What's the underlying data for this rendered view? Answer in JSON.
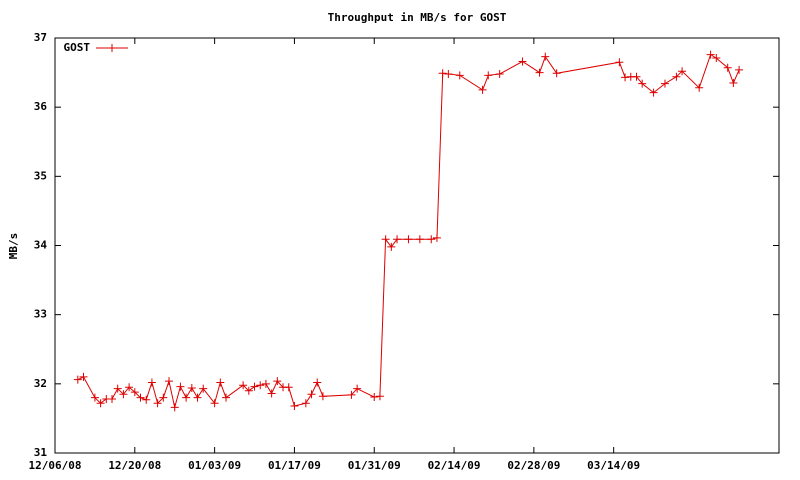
{
  "chart_data": {
    "type": "line",
    "title": "Throughput in MB/s for GOST",
    "ylabel": "MB/s",
    "x": [
      "2008-12-10",
      "2008-12-11",
      "2008-12-13",
      "2008-12-14",
      "2008-12-15",
      "2008-12-16",
      "2008-12-17",
      "2008-12-18",
      "2008-12-19",
      "2008-12-20",
      "2008-12-21",
      "2008-12-22",
      "2008-12-23",
      "2008-12-24",
      "2008-12-25",
      "2008-12-26",
      "2008-12-27",
      "2008-12-28",
      "2008-12-29",
      "2008-12-30",
      "2008-12-31",
      "2009-01-01",
      "2009-01-03",
      "2009-01-04",
      "2009-01-05",
      "2009-01-08",
      "2009-01-09",
      "2009-01-10",
      "2009-01-11",
      "2009-01-12",
      "2009-01-13",
      "2009-01-14",
      "2009-01-15",
      "2009-01-16",
      "2009-01-17",
      "2009-01-19",
      "2009-01-20",
      "2009-01-21",
      "2009-01-22",
      "2009-01-27",
      "2009-01-28",
      "2009-01-31",
      "2009-02-01",
      "2009-02-02",
      "2009-02-03",
      "2009-02-04",
      "2009-02-06",
      "2009-02-08",
      "2009-02-10",
      "2009-02-11",
      "2009-02-12",
      "2009-02-13",
      "2009-02-15",
      "2009-02-19",
      "2009-02-20",
      "2009-02-22",
      "2009-02-26",
      "2009-03-01",
      "2009-03-02",
      "2009-03-04",
      "2009-03-15",
      "2009-03-16",
      "2009-03-17",
      "2009-03-18",
      "2009-03-19",
      "2009-03-21",
      "2009-03-23",
      "2009-03-25",
      "2009-03-26",
      "2009-03-29",
      "2009-03-31",
      "2009-04-01",
      "2009-04-03",
      "2009-04-04",
      "2009-04-05"
    ],
    "series": [
      {
        "name": "GOST",
        "color": "#dd0000",
        "values": [
          32.06,
          32.1,
          31.8,
          31.72,
          31.78,
          31.78,
          31.93,
          31.85,
          31.95,
          31.88,
          31.8,
          31.77,
          32.02,
          31.72,
          31.8,
          32.04,
          31.66,
          31.96,
          31.8,
          31.94,
          31.8,
          31.93,
          31.72,
          32.02,
          31.8,
          31.98,
          31.9,
          31.96,
          31.98,
          32.0,
          31.86,
          32.04,
          31.95,
          31.95,
          31.68,
          31.72,
          31.85,
          32.02,
          31.82,
          31.84,
          31.93,
          31.81,
          31.82,
          34.09,
          33.98,
          34.09,
          34.09,
          34.09,
          34.09,
          34.11,
          36.49,
          36.48,
          36.46,
          36.25,
          36.46,
          36.48,
          36.66,
          36.5,
          36.73,
          36.49,
          36.65,
          36.43,
          36.44,
          36.44,
          36.34,
          36.21,
          36.34,
          36.44,
          36.52,
          36.28,
          36.76,
          36.71,
          36.57,
          36.35,
          36.54
        ]
      }
    ],
    "xlim": [
      "2008-12-06",
      "2009-04-12"
    ],
    "xticks": [
      {
        "value": "2008-12-06",
        "label": "12/06/08"
      },
      {
        "value": "2008-12-20",
        "label": "12/20/08"
      },
      {
        "value": "2009-01-03",
        "label": "01/03/09"
      },
      {
        "value": "2009-01-17",
        "label": "01/17/09"
      },
      {
        "value": "2009-01-31",
        "label": "01/31/09"
      },
      {
        "value": "2009-02-14",
        "label": "02/14/09"
      },
      {
        "value": "2009-02-28",
        "label": "02/28/09"
      },
      {
        "value": "2009-03-14",
        "label": "03/14/09"
      }
    ],
    "ylim": [
      31,
      37
    ],
    "yticks": [
      31,
      32,
      33,
      34,
      35,
      36,
      37
    ],
    "grid": false,
    "legend": "top-left"
  }
}
